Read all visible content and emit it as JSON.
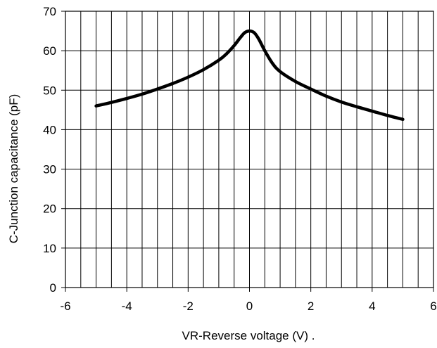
{
  "chart_data": {
    "type": "line",
    "title": "",
    "xlabel": "VR-Reverse voltage (V) .",
    "ylabel": "C-Junction capacitance (pF)",
    "xlim": [
      -6,
      6
    ],
    "ylim": [
      0,
      70
    ],
    "x_ticks": [
      -6,
      -4,
      -2,
      0,
      2,
      4,
      6
    ],
    "y_ticks": [
      0,
      10,
      20,
      30,
      40,
      50,
      60,
      70
    ],
    "x_tick_labels": [
      "-6",
      "-4",
      "-2",
      "0",
      "2",
      "4",
      "6"
    ],
    "y_tick_labels": [
      "0",
      "10",
      "20",
      "30",
      "40",
      "50",
      "60",
      "70"
    ],
    "grid": true,
    "vertical_grid_step": 0.5,
    "horizontal_grid_step": 10,
    "line_color": "#000000",
    "grid_color": "#000000",
    "series": [
      {
        "x": [
          -5.0,
          -4.5,
          -4.0,
          -3.5,
          -3.0,
          -2.5,
          -2.0,
          -1.5,
          -1.0,
          -0.75,
          -0.5,
          -0.3,
          -0.15,
          0.0,
          0.15,
          0.3,
          0.5,
          0.75,
          1.0,
          1.5,
          2.0,
          2.5,
          3.0,
          3.5,
          4.0,
          4.5,
          5.0
        ],
        "y": [
          46.0,
          46.9,
          47.9,
          49.0,
          50.3,
          51.7,
          53.3,
          55.2,
          57.6,
          59.2,
          61.3,
          63.3,
          64.6,
          65.0,
          64.6,
          63.0,
          60.0,
          56.8,
          54.7,
          52.2,
          50.3,
          48.5,
          47.0,
          45.8,
          44.7,
          43.6,
          42.6
        ]
      }
    ]
  }
}
